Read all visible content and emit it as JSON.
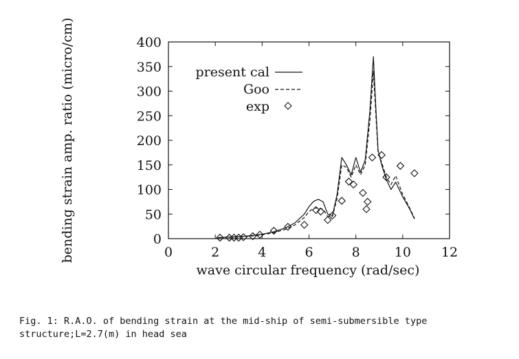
{
  "chart_data": {
    "type": "line",
    "title": "",
    "xlabel": "wave circular frequency (rad/sec)",
    "ylabel": "bending strain amp. ratio (micro/cm)",
    "xlim": [
      0,
      12
    ],
    "ylim": [
      0,
      400
    ],
    "xticks": [
      "0",
      "2",
      "4",
      "6",
      "8",
      "10",
      "12"
    ],
    "yticks": [
      "0",
      "50",
      "100",
      "150",
      "200",
      "250",
      "300",
      "350",
      "400"
    ],
    "grid": false,
    "legend_position": "top-left",
    "series": [
      {
        "name": "present cal",
        "style": "solid",
        "x": [
          2.1,
          2.5,
          3.0,
          3.5,
          4.0,
          4.5,
          5.0,
          5.4,
          5.8,
          6.0,
          6.2,
          6.4,
          6.6,
          6.8,
          7.0,
          7.2,
          7.4,
          7.6,
          7.8,
          8.0,
          8.2,
          8.4,
          8.6,
          8.75,
          8.85,
          8.95,
          9.1,
          9.3,
          9.5,
          9.7,
          10.0,
          10.3,
          10.5
        ],
        "y": [
          2,
          3,
          4,
          6,
          9,
          14,
          22,
          32,
          50,
          65,
          76,
          80,
          75,
          50,
          47,
          90,
          165,
          150,
          130,
          165,
          135,
          160,
          260,
          370,
          270,
          180,
          150,
          120,
          100,
          115,
          85,
          60,
          40
        ]
      },
      {
        "name": "Goo",
        "style": "dashed",
        "x": [
          2.1,
          2.5,
          3.0,
          3.5,
          4.0,
          4.5,
          5.0,
          5.4,
          5.8,
          6.0,
          6.2,
          6.4,
          6.6,
          6.8,
          7.0,
          7.2,
          7.4,
          7.6,
          7.8,
          8.0,
          8.2,
          8.4,
          8.6,
          8.75,
          8.85,
          8.95,
          9.1,
          9.3,
          9.5,
          9.7,
          10.0,
          10.3,
          10.5
        ],
        "y": [
          2,
          3,
          4,
          5,
          8,
          12,
          19,
          28,
          43,
          55,
          62,
          62,
          60,
          45,
          45,
          82,
          150,
          145,
          125,
          150,
          130,
          150,
          240,
          340,
          255,
          175,
          155,
          125,
          110,
          128,
          90,
          62,
          42
        ]
      },
      {
        "name": "exp",
        "style": "marker-diamond",
        "x": [
          2.2,
          2.6,
          2.8,
          3.0,
          3.2,
          3.6,
          3.9,
          4.5,
          5.1,
          5.8,
          6.3,
          6.5,
          6.8,
          7.0,
          7.4,
          7.7,
          7.9,
          8.3,
          8.45,
          8.5,
          8.7,
          9.1,
          9.3,
          9.9,
          10.5
        ],
        "y": [
          2,
          2,
          2,
          2,
          3,
          5,
          8,
          16,
          24,
          28,
          58,
          55,
          38,
          47,
          77,
          116,
          110,
          93,
          60,
          75,
          165,
          170,
          125,
          148,
          133
        ]
      }
    ]
  },
  "caption": "Fig. 1: R.A.O. of bending strain at the mid-ship of semi-submersible type structure;L=2.7(m) in head sea"
}
